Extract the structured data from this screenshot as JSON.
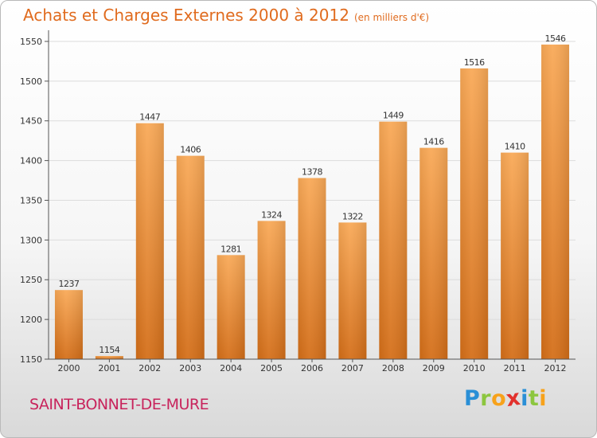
{
  "title": "Achats et Charges Externes 2000 à 2012",
  "subtitle": "(en milliers d'€)",
  "location": "SAINT-BONNET-DE-MURE",
  "brand": {
    "letters": [
      "P",
      "r",
      "o",
      "x",
      "i",
      "t",
      "i"
    ],
    "colors": [
      "#2a8fd6",
      "#8cc63f",
      "#f7a21b",
      "#e2312d",
      "#2a8fd6",
      "#8cc63f",
      "#f7a21b"
    ]
  },
  "colors": {
    "bar_light": "#f9a957",
    "bar_dark": "#d46e18",
    "title": "#e06b1e",
    "location": "#c8245c"
  },
  "chart_data": {
    "type": "bar",
    "categories": [
      "2000",
      "2001",
      "2002",
      "2003",
      "2004",
      "2005",
      "2006",
      "2007",
      "2008",
      "2009",
      "2010",
      "2011",
      "2012"
    ],
    "values": [
      1237,
      1154,
      1447,
      1406,
      1281,
      1324,
      1378,
      1322,
      1449,
      1416,
      1516,
      1410,
      1546
    ],
    "yticks": [
      1150,
      1200,
      1250,
      1300,
      1350,
      1400,
      1450,
      1500,
      1550
    ],
    "ylim": [
      1150,
      1560
    ],
    "grid": true,
    "legend": "none"
  }
}
